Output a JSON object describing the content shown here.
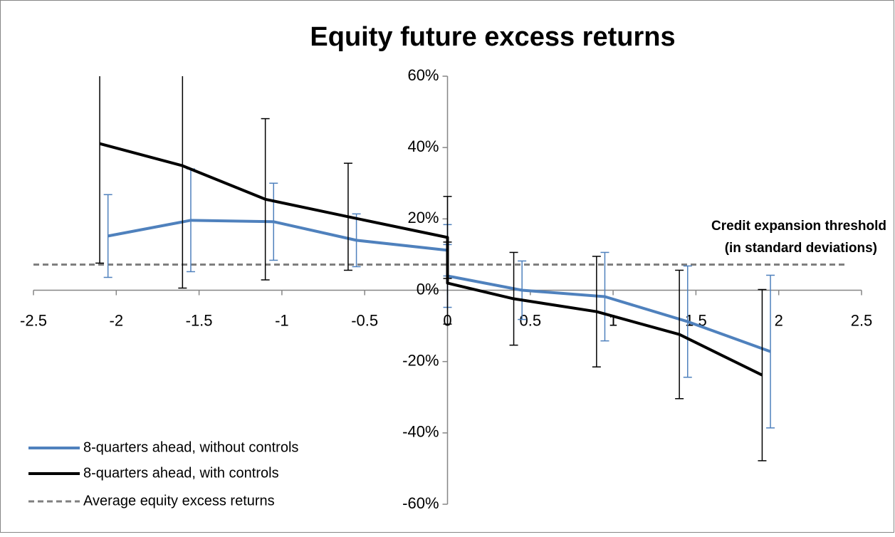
{
  "chart_data": {
    "type": "line",
    "title": "Equity future excess returns",
    "annotation": [
      "Credit expansion threshold",
      "(in standard deviations)"
    ],
    "xlim": [
      -2.5,
      2.5
    ],
    "xticks": [
      -2.5,
      -2,
      -1.5,
      -1,
      -0.5,
      0,
      0.5,
      1,
      1.5,
      2,
      2.5
    ],
    "ylim": [
      -60,
      60
    ],
    "yticks": [
      {
        "value": -60,
        "label": "-60%"
      },
      {
        "value": -40,
        "label": "-40%"
      },
      {
        "value": -20,
        "label": "-20%"
      },
      {
        "value": 0,
        "label": "0%"
      },
      {
        "value": 20,
        "label": "20%"
      },
      {
        "value": 40,
        "label": "40%"
      },
      {
        "value": 60,
        "label": "60%"
      }
    ],
    "legend": "bottom-left",
    "series": [
      {
        "name": "8-quarters ahead, without controls",
        "color": "#4f81bd",
        "width": 4,
        "x": [
          -2.05,
          -1.55,
          -1.05,
          -0.55,
          0,
          0,
          0.45,
          0.95,
          1.45,
          1.95
        ],
        "values": [
          15.2,
          19.6,
          19.2,
          14,
          11.2,
          4,
          0,
          -1.8,
          -8.8,
          -17.2
        ],
        "errors": [
          11.6,
          14.4,
          10.8,
          7.4,
          7.2,
          8.8,
          8.2,
          12.4,
          15.6,
          21.4
        ]
      },
      {
        "name": "8-quarters ahead, with controls",
        "color": "#000000",
        "width": 4,
        "x": [
          -2.1,
          -1.6,
          -1.1,
          -0.6,
          0,
          0,
          0.4,
          0.9,
          1.4,
          1.9
        ],
        "values": [
          41.1,
          34.9,
          25.5,
          20.6,
          14.8,
          2,
          -2.4,
          -6,
          -12.4,
          -23.8
        ],
        "errors": [
          33.5,
          34.3,
          22.6,
          15,
          11.5,
          11.5,
          13,
          15.5,
          18,
          24
        ]
      },
      {
        "name": "Average equity excess returns",
        "color": "#7f7f7f",
        "width": 3,
        "dashed": true,
        "x": [
          -2.5,
          2.4
        ],
        "values": [
          7.2,
          7.2
        ]
      }
    ]
  }
}
